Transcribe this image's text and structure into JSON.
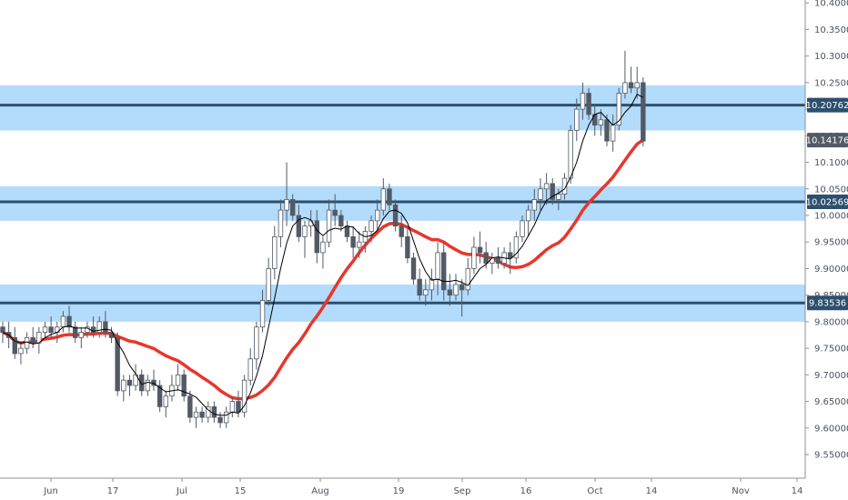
{
  "chart_data": {
    "type": "candlestick",
    "title": "",
    "xlabel": "",
    "ylabel": "",
    "ylim": [
      9.5055,
      10.4055
    ],
    "y_ticks": [
      "10.40000",
      "10.35000",
      "10.30000",
      "10.25000",
      "10.20000",
      "10.15000",
      "10.10000",
      "10.05000",
      "10.00000",
      "9.95000",
      "9.90000",
      "9.85000",
      "9.80000",
      "9.75000",
      "9.70000",
      "9.65000",
      "9.60000",
      "9.55000"
    ],
    "x_ticks": [
      "Jun",
      "17",
      "Jul",
      "15",
      "Aug",
      "19",
      "Sep",
      "16",
      "Oct",
      "14",
      "Nov",
      "14"
    ],
    "price_badges": [
      {
        "label": "10.20762",
        "value": 10.20762,
        "style": "level"
      },
      {
        "label": "10.14176",
        "value": 10.14176,
        "style": "last"
      },
      {
        "label": "10.02569",
        "value": 10.02569,
        "style": "level"
      },
      {
        "label": "9.83536",
        "value": 9.83536,
        "style": "level"
      }
    ],
    "zones": [
      {
        "low": 10.16,
        "high": 10.245,
        "line": 10.20762
      },
      {
        "low": 9.99,
        "high": 10.055,
        "line": 10.02569
      },
      {
        "low": 9.8,
        "high": 9.87,
        "line": 9.83536
      }
    ],
    "series": [
      {
        "kind": "candles",
        "ohlc": [
          [
            9.79,
            9.8,
            9.76,
            9.78
          ],
          [
            9.78,
            9.8,
            9.75,
            9.77
          ],
          [
            9.77,
            9.79,
            9.73,
            9.74
          ],
          [
            9.74,
            9.76,
            9.72,
            9.75
          ],
          [
            9.75,
            9.78,
            9.74,
            9.77
          ],
          [
            9.77,
            9.79,
            9.75,
            9.76
          ],
          [
            9.76,
            9.79,
            9.74,
            9.78
          ],
          [
            9.78,
            9.8,
            9.77,
            9.79
          ],
          [
            9.79,
            9.81,
            9.77,
            9.78
          ],
          [
            9.78,
            9.8,
            9.76,
            9.79
          ],
          [
            9.79,
            9.82,
            9.78,
            9.81
          ],
          [
            9.81,
            9.83,
            9.78,
            9.79
          ],
          [
            9.79,
            9.8,
            9.76,
            9.77
          ],
          [
            9.77,
            9.79,
            9.75,
            9.78
          ],
          [
            9.78,
            9.8,
            9.77,
            9.79
          ],
          [
            9.79,
            9.81,
            9.77,
            9.78
          ],
          [
            9.78,
            9.81,
            9.77,
            9.8
          ],
          [
            9.8,
            9.82,
            9.77,
            9.78
          ],
          [
            9.78,
            9.79,
            9.76,
            9.77
          ],
          [
            9.77,
            9.78,
            9.66,
            9.67
          ],
          [
            9.67,
            9.7,
            9.65,
            9.69
          ],
          [
            9.69,
            9.7,
            9.66,
            9.68
          ],
          [
            9.68,
            9.72,
            9.67,
            9.7
          ],
          [
            9.7,
            9.71,
            9.66,
            9.67
          ],
          [
            9.67,
            9.7,
            9.66,
            9.69
          ],
          [
            9.69,
            9.71,
            9.67,
            9.68
          ],
          [
            9.68,
            9.69,
            9.63,
            9.64
          ],
          [
            9.64,
            9.67,
            9.62,
            9.66
          ],
          [
            9.66,
            9.7,
            9.65,
            9.68
          ],
          [
            9.68,
            9.72,
            9.67,
            9.7
          ],
          [
            9.7,
            9.71,
            9.65,
            9.66
          ],
          [
            9.66,
            9.67,
            9.61,
            9.62
          ],
          [
            9.62,
            9.64,
            9.6,
            9.63
          ],
          [
            9.63,
            9.64,
            9.61,
            9.62
          ],
          [
            9.62,
            9.65,
            9.61,
            9.64
          ],
          [
            9.64,
            9.65,
            9.61,
            9.62
          ],
          [
            9.62,
            9.63,
            9.6,
            9.61
          ],
          [
            9.61,
            9.64,
            9.6,
            9.63
          ],
          [
            9.63,
            9.66,
            9.62,
            9.65
          ],
          [
            9.65,
            9.67,
            9.62,
            9.63
          ],
          [
            9.63,
            9.7,
            9.62,
            9.69
          ],
          [
            9.69,
            9.75,
            9.68,
            9.73
          ],
          [
            9.73,
            9.8,
            9.71,
            9.79
          ],
          [
            9.79,
            9.86,
            9.78,
            9.84
          ],
          [
            9.84,
            9.92,
            9.83,
            9.9
          ],
          [
            9.9,
            9.98,
            9.88,
            9.96
          ],
          [
            9.96,
            10.03,
            9.94,
            10.01
          ],
          [
            10.01,
            10.1,
            9.98,
            10.03
          ],
          [
            10.03,
            10.04,
            9.99,
            10.0
          ],
          [
            10.0,
            10.02,
            9.95,
            9.96
          ],
          [
            9.96,
            9.99,
            9.92,
            9.98
          ],
          [
            9.98,
            10.01,
            9.96,
            9.99
          ],
          [
            9.99,
            10.01,
            9.91,
            9.93
          ],
          [
            9.93,
            9.96,
            9.9,
            9.95
          ],
          [
            9.95,
            10.03,
            9.94,
            10.01
          ],
          [
            10.01,
            10.04,
            9.98,
            10.0
          ],
          [
            10.0,
            10.01,
            9.97,
            9.98
          ],
          [
            9.98,
            9.99,
            9.95,
            9.96
          ],
          [
            9.96,
            9.98,
            9.92,
            9.94
          ],
          [
            9.94,
            9.97,
            9.92,
            9.95
          ],
          [
            9.95,
            9.98,
            9.93,
            9.97
          ],
          [
            9.97,
            10.0,
            9.95,
            9.99
          ],
          [
            9.99,
            10.03,
            9.97,
            10.01
          ],
          [
            10.01,
            10.07,
            10.0,
            10.05
          ],
          [
            10.05,
            10.06,
            10.01,
            10.02
          ],
          [
            10.02,
            10.03,
            9.97,
            9.98
          ],
          [
            9.98,
            10.0,
            9.94,
            9.96
          ],
          [
            9.96,
            9.98,
            9.91,
            9.92
          ],
          [
            9.92,
            9.93,
            9.87,
            9.88
          ],
          [
            9.88,
            9.9,
            9.84,
            9.85
          ],
          [
            9.85,
            9.88,
            9.83,
            9.86
          ],
          [
            9.86,
            9.9,
            9.84,
            9.88
          ],
          [
            9.88,
            9.95,
            9.85,
            9.93
          ],
          [
            9.93,
            9.95,
            9.84,
            9.86
          ],
          [
            9.86,
            9.89,
            9.83,
            9.85
          ],
          [
            9.85,
            9.89,
            9.84,
            9.87
          ],
          [
            9.87,
            9.88,
            9.81,
            9.86
          ],
          [
            9.86,
            9.92,
            9.85,
            9.9
          ],
          [
            9.9,
            9.96,
            9.89,
            9.94
          ],
          [
            9.94,
            9.97,
            9.91,
            9.93
          ],
          [
            9.93,
            9.95,
            9.9,
            9.91
          ],
          [
            9.91,
            9.93,
            9.89,
            9.92
          ],
          [
            9.92,
            9.94,
            9.9,
            9.91
          ],
          [
            9.91,
            9.94,
            9.9,
            9.93
          ],
          [
            9.93,
            9.95,
            9.89,
            9.92
          ],
          [
            9.92,
            9.97,
            9.91,
            9.96
          ],
          [
            9.96,
            10.0,
            9.95,
            9.99
          ],
          [
            9.99,
            10.02,
            9.96,
            10.01
          ],
          [
            10.01,
            10.05,
            9.99,
            10.03
          ],
          [
            10.03,
            10.07,
            10.01,
            10.05
          ],
          [
            10.05,
            10.08,
            10.02,
            10.06
          ],
          [
            10.06,
            10.07,
            10.02,
            10.03
          ],
          [
            10.03,
            10.05,
            10.01,
            10.04
          ],
          [
            10.04,
            10.08,
            10.03,
            10.07
          ],
          [
            10.07,
            10.17,
            10.06,
            10.16
          ],
          [
            10.16,
            10.22,
            10.14,
            10.2
          ],
          [
            10.2,
            10.25,
            10.18,
            10.23
          ],
          [
            10.23,
            10.24,
            10.18,
            10.19
          ],
          [
            10.19,
            10.21,
            10.15,
            10.17
          ],
          [
            10.17,
            10.2,
            10.15,
            10.18
          ],
          [
            10.18,
            10.19,
            10.13,
            10.14
          ],
          [
            10.14,
            10.19,
            10.12,
            10.17
          ],
          [
            10.17,
            10.24,
            10.16,
            10.23
          ],
          [
            10.23,
            10.31,
            10.22,
            10.25
          ],
          [
            10.25,
            10.28,
            10.23,
            10.24
          ],
          [
            10.24,
            10.28,
            10.22,
            10.25
          ],
          [
            10.25,
            10.26,
            10.13,
            10.14
          ]
        ]
      },
      {
        "kind": "sma_short",
        "values": []
      },
      {
        "kind": "sma_long",
        "values": []
      }
    ],
    "colors": {
      "zone_fill": "#b3dbfb",
      "level_line": "#2d4f6e",
      "bull_body": "#ffffff",
      "bear_body": "#535a66",
      "wick": "#535a66",
      "sma_short": "#000000",
      "sma_long": "#e8362c",
      "last_badge": "#535a66",
      "level_badge": "#2d4f6e"
    },
    "grid": false,
    "legend": "none"
  }
}
